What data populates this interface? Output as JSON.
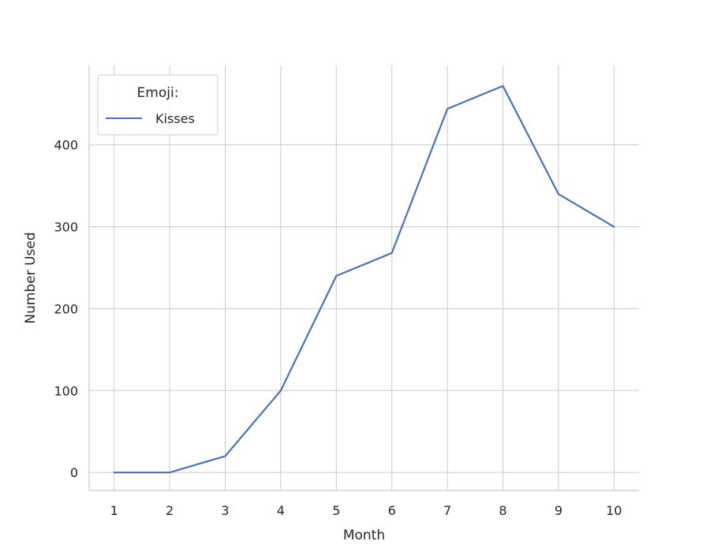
{
  "chart_data": {
    "type": "line",
    "title": "",
    "xlabel": "Month",
    "ylabel": "Number Used",
    "x": [
      1,
      2,
      3,
      4,
      5,
      6,
      7,
      8,
      9,
      10
    ],
    "xticks": [
      "1",
      "2",
      "3",
      "4",
      "5",
      "6",
      "7",
      "8",
      "9",
      "10"
    ],
    "yticks": [
      0,
      100,
      200,
      300,
      400
    ],
    "ylim": [
      -22,
      497
    ],
    "xlim": [
      0.55,
      10.45
    ],
    "grid": true,
    "legend": {
      "title": "Emoji:",
      "position": "top-left"
    },
    "series": [
      {
        "name": "Kisses",
        "color": "#4c72b0",
        "values": [
          0,
          0,
          20,
          100,
          240,
          268,
          444,
          472,
          340,
          300
        ]
      }
    ]
  }
}
